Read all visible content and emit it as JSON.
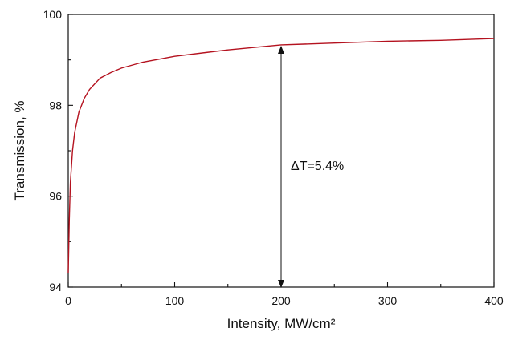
{
  "chart_data": {
    "type": "line",
    "xlabel": "Intensity, MW/cm²",
    "ylabel": "Transmission, %",
    "annotation": "ΔT=5.4%",
    "x": [
      0,
      1,
      2,
      4,
      6,
      10,
      15,
      20,
      30,
      40,
      50,
      70,
      100,
      150,
      200,
      250,
      300,
      350,
      400
    ],
    "series": [
      {
        "color": "#b4121f",
        "values": [
          94.3,
          95.5,
          96.3,
          97.0,
          97.4,
          97.85,
          98.15,
          98.35,
          98.6,
          98.72,
          98.82,
          98.95,
          99.08,
          99.22,
          99.33,
          99.37,
          99.41,
          99.43,
          99.47
        ]
      }
    ],
    "xlim": [
      0,
      400
    ],
    "xticks": [
      0,
      100,
      200,
      300,
      400
    ],
    "ylim": [
      94,
      100
    ],
    "yticks": [
      94,
      96,
      98,
      100
    ]
  }
}
